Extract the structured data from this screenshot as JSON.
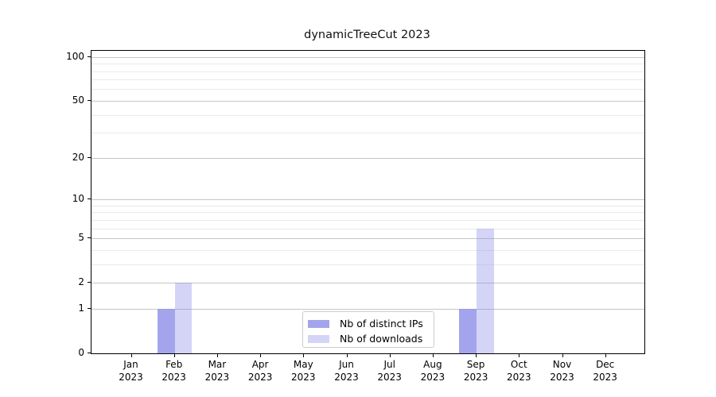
{
  "title": "dynamicTreeCut 2023",
  "chart_data": {
    "type": "bar",
    "title": "dynamicTreeCut 2023",
    "x_year": "2023",
    "categories": [
      "Jan",
      "Feb",
      "Mar",
      "Apr",
      "May",
      "Jun",
      "Jul",
      "Aug",
      "Sep",
      "Oct",
      "Nov",
      "Dec"
    ],
    "series": [
      {
        "name": "Nb of distinct IPs",
        "color": "rgba(141,141,233,0.80)",
        "values": [
          0,
          1,
          0,
          0,
          0,
          0,
          0,
          0,
          1,
          0,
          0,
          0
        ]
      },
      {
        "name": "Nb of downloads",
        "color": "rgba(141,141,233,0.38)",
        "values": [
          0,
          2,
          0,
          0,
          0,
          0,
          0,
          0,
          6,
          0,
          0,
          0
        ]
      }
    ],
    "y_ticks": [
      0,
      1,
      2,
      5,
      10,
      20,
      50,
      100
    ],
    "y_minor_ticks": [
      3,
      4,
      6,
      7,
      8,
      9,
      30,
      40,
      60,
      70,
      80,
      90
    ],
    "y_scale": "log10(1+v)",
    "ylim": [
      0,
      110
    ],
    "grid": true,
    "legend_position": "lower center",
    "colors": {
      "major_grid": "#c6c6c6",
      "minor_grid": "#eaeaea",
      "axis": "#000000",
      "legend_border": "#cccccc",
      "background": "#ffffff"
    }
  }
}
